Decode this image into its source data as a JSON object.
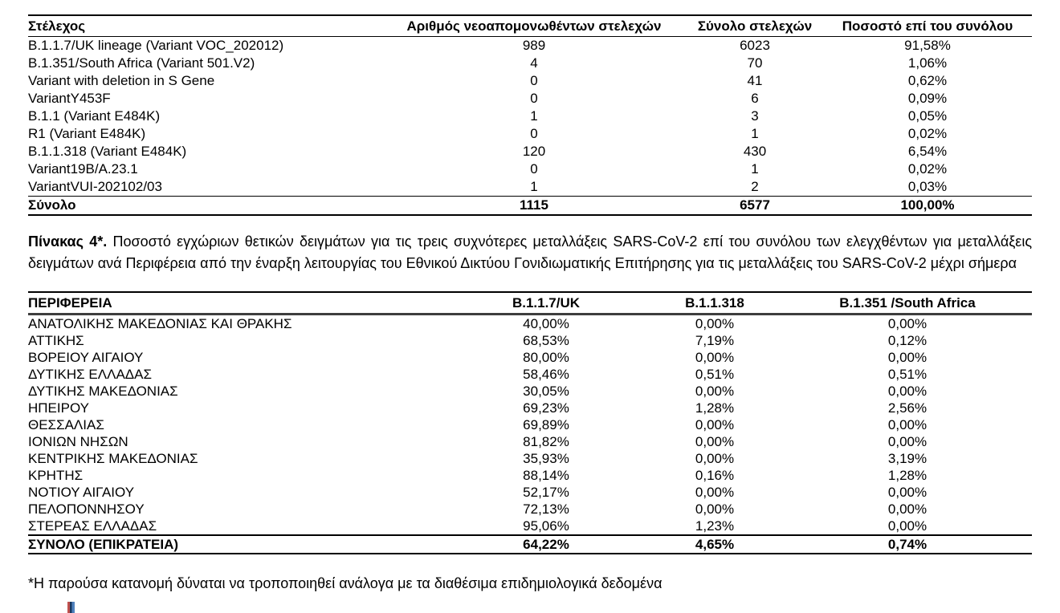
{
  "table1": {
    "headers": [
      "Στέλεχος",
      "Αριθμός νεοαπομονωθέντων στελεχών",
      "Σύνολο στελεχών",
      "Ποσοστό επί του συνόλου"
    ],
    "rows": [
      {
        "cells": [
          "B.1.1.7/UK lineage (Variant VOC_202012)",
          "989",
          "6023",
          "91,58%"
        ]
      },
      {
        "cells": [
          "B.1.351/South Africa (Variant 501.V2)",
          "4",
          "70",
          "1,06%"
        ]
      },
      {
        "cells": [
          "Variant with deletion in S Gene",
          "0",
          "41",
          "0,62%"
        ]
      },
      {
        "cells": [
          "VariantY453F",
          "0",
          "6",
          "0,09%"
        ]
      },
      {
        "cells": [
          "B.1.1 (Variant E484K)",
          "1",
          "3",
          "0,05%"
        ]
      },
      {
        "cells": [
          "R1 (Variant E484K)",
          "0",
          "1",
          "0,02%"
        ]
      },
      {
        "cells": [
          "B.1.1.318 (Variant E484K)",
          "120",
          "430",
          "6,54%"
        ]
      },
      {
        "cells": [
          "Variant19B/A.23.1",
          "0",
          "1",
          "0,02%"
        ]
      },
      {
        "cells": [
          "VariantVUI-202102/03",
          "1",
          "2",
          "0,03%"
        ]
      },
      {
        "cells": [
          "Σύνολο",
          "1115",
          "6577",
          "100,00%"
        ],
        "bold": true,
        "topline": true
      }
    ]
  },
  "caption": {
    "label": "Πίνακας 4*.",
    "text": " Ποσοστό εγχώριων θετικών δειγμάτων για τις τρεις συχνότερες μεταλλάξεις SARS-CoV-2 επί του συνόλου των ελεγχθέντων για μεταλλάξεις δειγμάτων ανά Περιφέρεια από την έναρξη λειτουργίας του Εθνικού Δικτύου Γονιδιωματικής Επιτήρησης για τις μεταλλάξεις του SARS-CoV-2 μέχρι σήμερα"
  },
  "table2": {
    "headers": [
      "ΠΕΡΙΦΕΡΕΙΑ",
      "B.1.1.7/UK",
      "B.1.1.318",
      "B.1.351 /South Africa"
    ],
    "rows": [
      {
        "cells": [
          "ΑΝΑΤΟΛΙΚΗΣ ΜΑΚΕΔΟΝΙΑΣ ΚΑΙ ΘΡΑΚΗΣ",
          "40,00%",
          "0,00%",
          "0,00%"
        ]
      },
      {
        "cells": [
          "ΑΤΤΙΚΗΣ",
          "68,53%",
          "7,19%",
          "0,12%"
        ]
      },
      {
        "cells": [
          "ΒΟΡΕΙΟΥ ΑΙΓΑΙΟΥ",
          "80,00%",
          "0,00%",
          "0,00%"
        ]
      },
      {
        "cells": [
          "ΔΥΤΙΚΗΣ ΕΛΛΑΔΑΣ",
          "58,46%",
          "0,51%",
          "0,51%"
        ]
      },
      {
        "cells": [
          "ΔΥΤΙΚΗΣ ΜΑΚΕΔΟΝΙΑΣ",
          "30,05%",
          "0,00%",
          "0,00%"
        ]
      },
      {
        "cells": [
          "ΗΠΕΙΡΟΥ",
          "69,23%",
          "1,28%",
          "2,56%"
        ]
      },
      {
        "cells": [
          "ΘΕΣΣΑΛΙΑΣ",
          "69,89%",
          "0,00%",
          "0,00%"
        ]
      },
      {
        "cells": [
          "ΙΟΝΙΩΝ ΝΗΣΩΝ",
          "81,82%",
          "0,00%",
          "0,00%"
        ]
      },
      {
        "cells": [
          "ΚΕΝΤΡΙΚΗΣ ΜΑΚΕΔΟΝΙΑΣ",
          "35,93%",
          "0,00%",
          "3,19%"
        ]
      },
      {
        "cells": [
          "ΚΡΗΤΗΣ",
          "88,14%",
          "0,16%",
          "1,28%"
        ]
      },
      {
        "cells": [
          "ΝΟΤΙΟΥ ΑΙΓΑΙΟΥ",
          "52,17%",
          "0,00%",
          "0,00%"
        ]
      },
      {
        "cells": [
          "ΠΕΛΟΠΟΝΝΗΣΟΥ",
          "72,13%",
          "0,00%",
          "0,00%"
        ]
      },
      {
        "cells": [
          "ΣΤΕΡΕΑΣ ΕΛΛΑΔΑΣ",
          "95,06%",
          "1,23%",
          "0,00%"
        ]
      },
      {
        "cells": [
          "ΣΥΝΟΛΟ (ΕΠΙΚΡΑΤΕΙΑ)",
          "64,22%",
          "4,65%",
          "0,74%"
        ],
        "bold": true,
        "topline": true
      }
    ]
  },
  "footnote": "*Η παρούσα κατανομή δύναται να τροποποιηθεί ανάλογα με τα διαθέσιμα επιδημιολογικά δεδομένα",
  "logo_fragment_colors": [
    "#c0504d",
    "#17375e",
    "#4f81bd"
  ]
}
